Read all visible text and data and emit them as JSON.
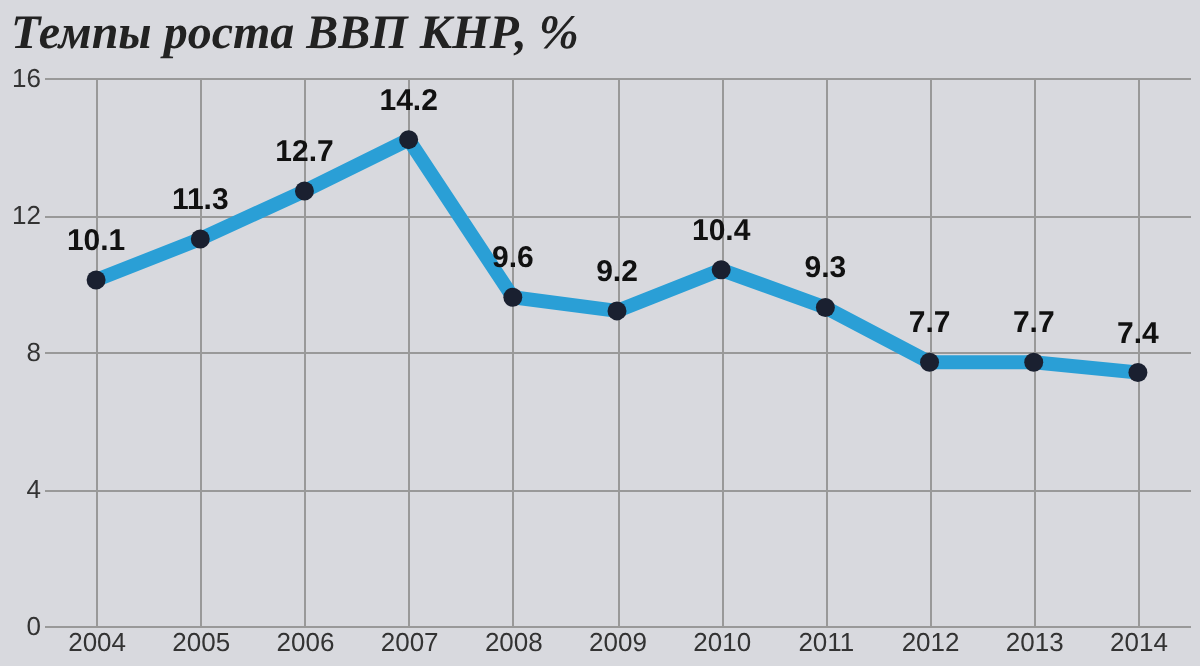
{
  "chart_data": {
    "type": "line",
    "title": "Темпы роста ВВП КНР, %",
    "categories": [
      "2004",
      "2005",
      "2006",
      "2007",
      "2008",
      "2009",
      "2010",
      "2011",
      "2012",
      "2013",
      "2014"
    ],
    "series": [
      {
        "color": "#2a9fd6",
        "values": [
          10.1,
          11.3,
          12.7,
          14.2,
          9.6,
          9.2,
          10.4,
          9.3,
          7.7,
          7.7,
          7.4
        ]
      }
    ],
    "ylim": [
      0,
      16
    ],
    "yticks": [
      0,
      4,
      8,
      12,
      16
    ],
    "grid": true,
    "marker": "circle",
    "data_labels": true
  }
}
